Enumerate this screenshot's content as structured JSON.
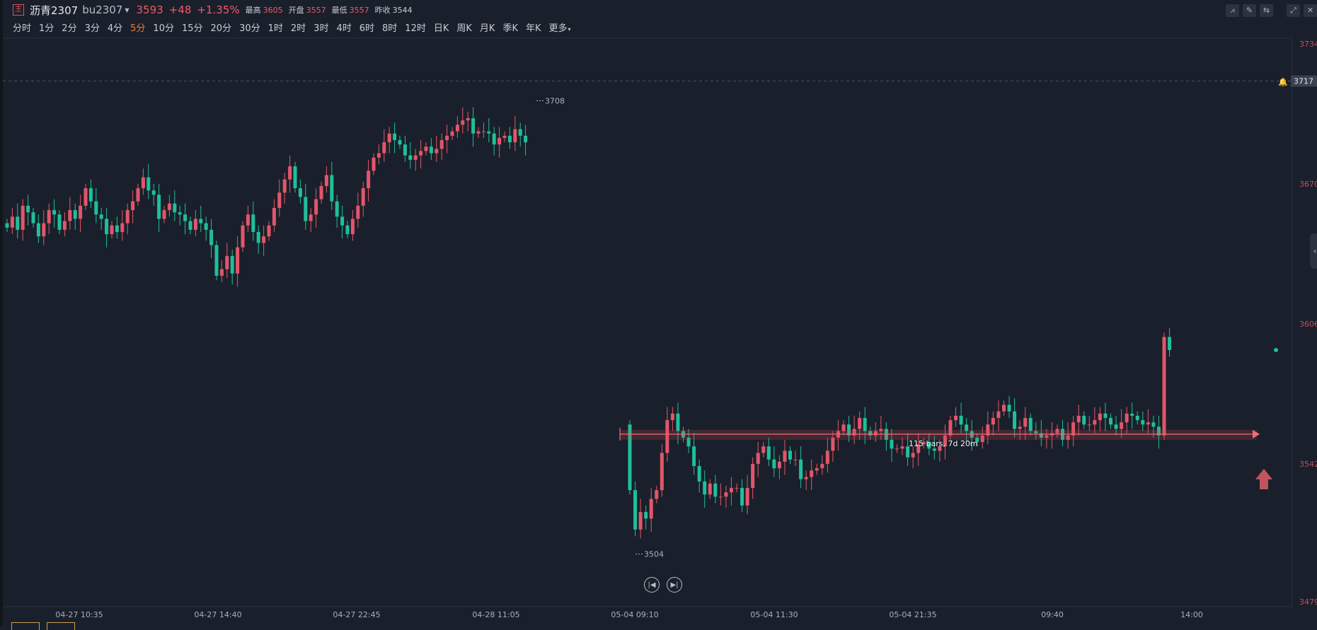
{
  "header": {
    "badge": "主",
    "name": "沥青2307",
    "code": "bu2307",
    "price": "3593",
    "change": "+48",
    "change_pct": "+1.35%",
    "stats": [
      {
        "label": "最高",
        "value": "3605",
        "tone": "up"
      },
      {
        "label": "开盘",
        "value": "3557",
        "tone": "up"
      },
      {
        "label": "最低",
        "value": "3557",
        "tone": "up"
      },
      {
        "label": "昨收",
        "value": "3544",
        "tone": "neutral"
      }
    ]
  },
  "toolbar_icons": [
    "chart-type-icon",
    "pencil-icon",
    "compare-icon",
    "expand-icon",
    "close-icon"
  ],
  "timeframes": [
    "分时",
    "1分",
    "2分",
    "3分",
    "4分",
    "5分",
    "10分",
    "15分",
    "20分",
    "30分",
    "1时",
    "2时",
    "3时",
    "4时",
    "6时",
    "8时",
    "12时",
    "日K",
    "周K",
    "月K",
    "季K",
    "年K",
    "更多"
  ],
  "active_timeframe": "5分",
  "y_axis": {
    "ticks": [
      "3734",
      "3670",
      "3606",
      "3542",
      "3479"
    ],
    "current_line": "3717"
  },
  "x_axis": [
    "04-27 10:35",
    "04-27 14:40",
    "04-27 22:45",
    "04-28 11:05",
    "05-04 09:10",
    "05-04 11:30",
    "05-04 21:35",
    "09:40",
    "14:00"
  ],
  "annotations": {
    "high": "3708",
    "low": "3504",
    "measure": "115 bars, 7d 20m"
  },
  "colors": {
    "up": "#e2566a",
    "down": "#1fbf9a",
    "bg": "#1a202b",
    "measure": "#f26a73"
  },
  "chart_data": {
    "type": "candlestick",
    "ylim": [
      3479,
      3734
    ],
    "segment1_close": [
      3650,
      3655,
      3649,
      3660,
      3657,
      3652,
      3646,
      3652,
      3658,
      3656,
      3649,
      3653,
      3658,
      3654,
      3660,
      3668,
      3662,
      3656,
      3654,
      3647,
      3651,
      3648,
      3652,
      3658,
      3662,
      3668,
      3673,
      3667,
      3665,
      3654,
      3658,
      3661,
      3657,
      3656,
      3653,
      3649,
      3654,
      3652,
      3649,
      3642,
      3628,
      3631,
      3637,
      3629,
      3641,
      3651,
      3656,
      3648,
      3643,
      3646,
      3651,
      3659,
      3666,
      3672,
      3678,
      3668,
      3664,
      3653,
      3656,
      3663,
      3669,
      3674,
      3662,
      3655,
      3651,
      3647,
      3654,
      3660,
      3668,
      3676,
      3682,
      3684,
      3689,
      3693,
      3690,
      3688,
      3683,
      3681,
      3683,
      3685,
      3687,
      3684,
      3686,
      3690,
      3692,
      3694,
      3697,
      3699,
      3700,
      3693,
      3694,
      3694,
      3693,
      3688,
      3691,
      3692,
      3689,
      3695,
      3692,
      3689
    ],
    "segment2_close": [
      3530,
      3512,
      3520,
      3517,
      3526,
      3530,
      3547,
      3562,
      3565,
      3557,
      3554,
      3550,
      3541,
      3534,
      3528,
      3533,
      3527,
      3527,
      3529,
      3531,
      3531,
      3523,
      3531,
      3542,
      3547,
      3550,
      3544,
      3540,
      3543,
      3548,
      3544,
      3544,
      3535,
      3536,
      3539,
      3540,
      3542,
      3548,
      3554,
      3557,
      3560,
      3555,
      3558,
      3563,
      3557,
      3555,
      3557,
      3558,
      3553,
      3549,
      3549,
      3550,
      3545,
      3547,
      3551,
      3552,
      3549,
      3548,
      3550,
      3555,
      3562,
      3564,
      3560,
      3557,
      3554,
      3552,
      3555,
      3560,
      3563,
      3566,
      3569,
      3566,
      3558,
      3559,
      3563,
      3557,
      3556,
      3554,
      3555,
      3556,
      3558,
      3553,
      3555,
      3561,
      3564,
      3560,
      3560,
      3562,
      3565,
      3563,
      3560,
      3558,
      3561,
      3565,
      3564,
      3562,
      3560,
      3561,
      3559,
      3555,
      3600,
      3594
    ]
  }
}
